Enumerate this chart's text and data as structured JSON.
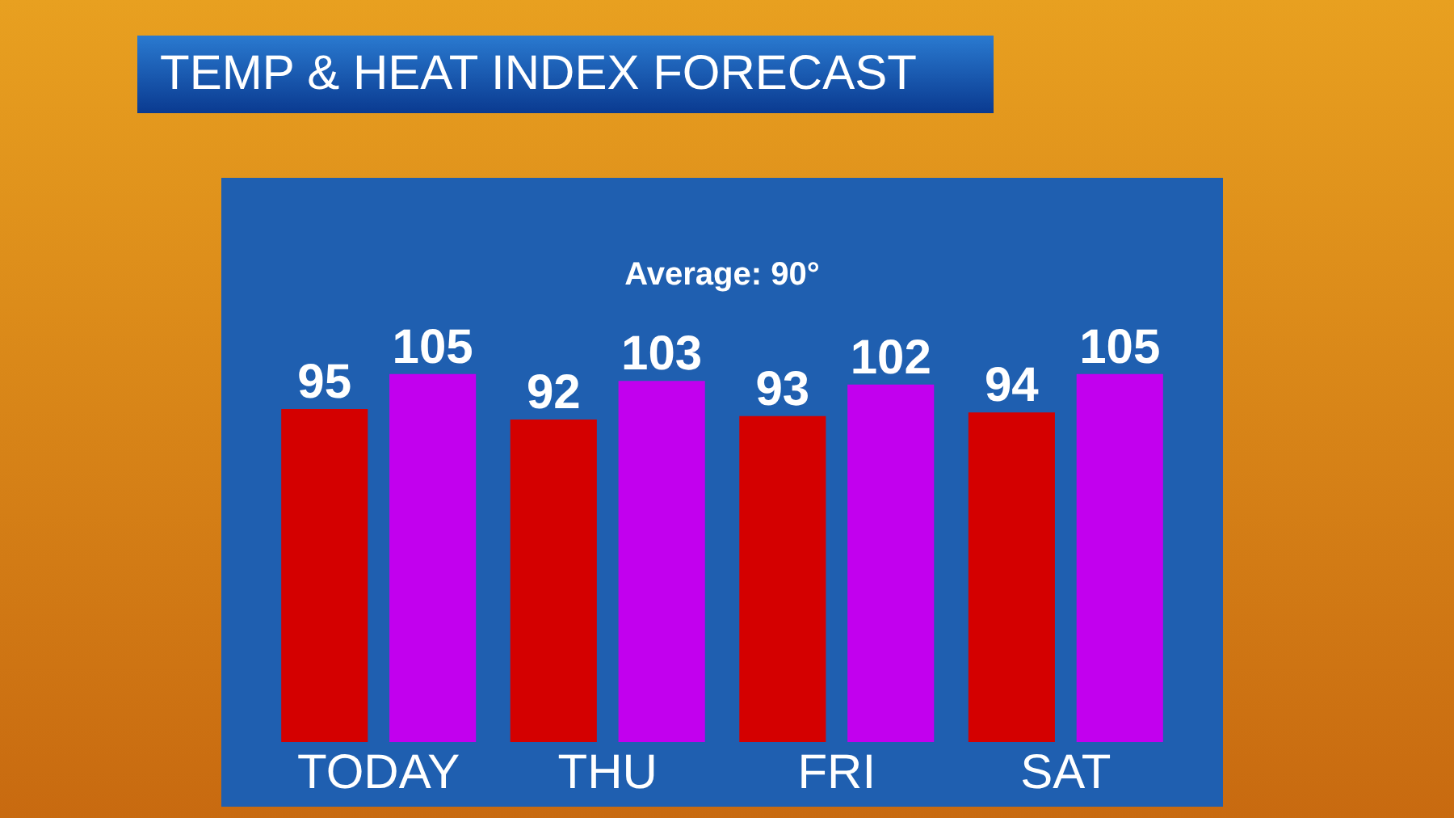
{
  "chart_data": {
    "type": "bar",
    "title": "TEMP & HEAT INDEX FORECAST",
    "categories": [
      "TODAY",
      "THU",
      "FRI",
      "SAT"
    ],
    "series": [
      {
        "color": "#d40000",
        "values": [
          95,
          92,
          93,
          94
        ]
      },
      {
        "color": "#c200ee",
        "values": [
          105,
          103,
          102,
          105
        ]
      }
    ],
    "data_labels": true,
    "grid": false,
    "legend": false,
    "annotations": [
      "Average: 90°"
    ]
  }
}
